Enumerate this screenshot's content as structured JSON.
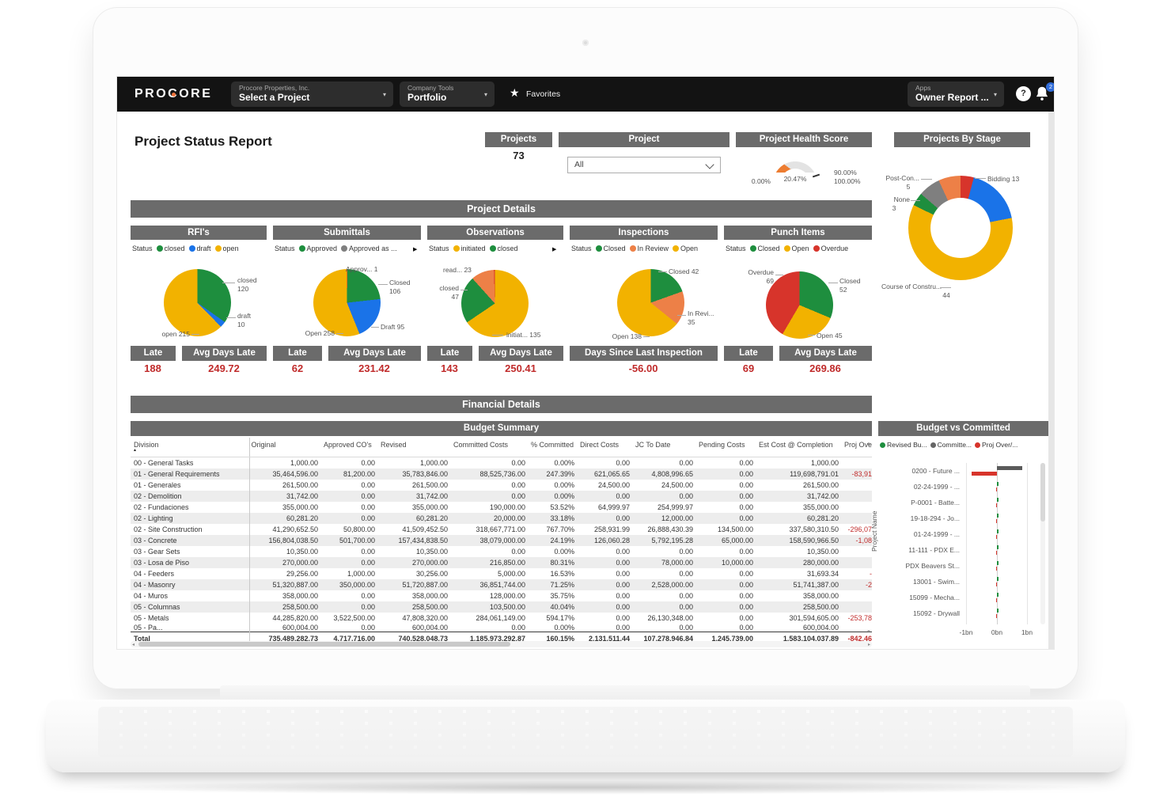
{
  "nav": {
    "logo": "PROCORE",
    "project_dd_label": "Procore Properties, Inc.",
    "project_dd_value": "Select a Project",
    "tools_dd_label": "Company Tools",
    "tools_dd_value": "Portfolio",
    "favorites": "Favorites",
    "apps_dd_label": "Apps",
    "apps_dd_value": "Owner Report ...",
    "notification_count": "2"
  },
  "report": {
    "title": "Project Status Report"
  },
  "projects_card": {
    "header": "Projects",
    "count": "73"
  },
  "project_filter": {
    "header": "Project",
    "value": "All"
  },
  "health": {
    "header": "Project Health Score",
    "min_label": "0.00%",
    "value_label": "20.47%",
    "target_label": "90.00%",
    "max_label": "100.00%",
    "percent": 20.47,
    "target_percent": 90,
    "arc_color": "#ED7D31"
  },
  "stage": {
    "header": "Projects By Stage",
    "slices": [
      {
        "label": "",
        "value": 3,
        "color": "#D7342B"
      },
      {
        "label": "Bidding",
        "value": 13,
        "color": "#1A73E8"
      },
      {
        "label": "Course of Constru...",
        "value": 44,
        "color": "#F2B200"
      },
      {
        "label": "None",
        "value": 3,
        "color": "#1E8E3E"
      },
      {
        "label": "Post-Con...",
        "value": 5,
        "color": "#7F7F7F"
      },
      {
        "label": "",
        "value": 5,
        "color": "#ED8047"
      }
    ],
    "callouts": {
      "post": "Post-Con...",
      "post_v": "5",
      "none": "None",
      "none_v": "3",
      "bidding": "Bidding 13",
      "course": "Course of Constru...",
      "course_v": "44"
    }
  },
  "details": {
    "header": "Project Details",
    "sections": [
      {
        "title": "RFI's",
        "legend_label": "Status",
        "legend": [
          {
            "label": "closed",
            "color": "#1E8E3E"
          },
          {
            "label": "draft",
            "color": "#1A73E8"
          },
          {
            "label": "open",
            "color": "#F2B200"
          }
        ],
        "slices": [
          {
            "label": "closed",
            "value": 120,
            "color": "#1E8E3E"
          },
          {
            "label": "draft",
            "value": 10,
            "color": "#1A73E8"
          },
          {
            "label": "open",
            "value": 215,
            "color": "#F2B200"
          }
        ],
        "callouts": [
          "closed",
          "120",
          "draft",
          "10",
          "open 215"
        ],
        "metrics": [
          {
            "header": "Late",
            "value": "188"
          },
          {
            "header": "Avg Days Late",
            "value": "249.72"
          }
        ]
      },
      {
        "title": "Submittals",
        "legend_label": "Status",
        "legend": [
          {
            "label": "Approved",
            "color": "#1E8E3E"
          },
          {
            "label": "Approved as ...",
            "color": "#7F7F7F"
          }
        ],
        "slices": [
          {
            "label": "Approv...",
            "value": 1,
            "color": "#D7342B"
          },
          {
            "label": "Closed",
            "value": 106,
            "color": "#1E8E3E"
          },
          {
            "label": "Draft",
            "value": 95,
            "color": "#1A73E8"
          },
          {
            "label": "Open",
            "value": 258,
            "color": "#F2B200"
          }
        ],
        "callouts": [
          "Approv... 1",
          "Closed",
          "106",
          "Draft 95",
          "Open 258"
        ],
        "metrics": [
          {
            "header": "Late",
            "value": "62"
          },
          {
            "header": "Avg Days Late",
            "value": "231.42"
          }
        ]
      },
      {
        "title": "Observations",
        "legend_label": "Status",
        "legend": [
          {
            "label": "initiated",
            "color": "#F2B200"
          },
          {
            "label": "closed",
            "color": "#1E8E3E"
          }
        ],
        "slices": [
          {
            "label": "initiat...",
            "value": 135,
            "color": "#F2B200"
          },
          {
            "label": "closed",
            "value": 47,
            "color": "#1E8E3E"
          },
          {
            "label": "read...",
            "value": 23,
            "color": "#ED8047"
          },
          {
            "label": "",
            "value": 1,
            "color": "#D7342B"
          }
        ],
        "callouts": [
          "read... 23",
          "closed",
          "47",
          "initiat... 135"
        ],
        "metrics": [
          {
            "header": "Late",
            "value": "143"
          },
          {
            "header": "Avg Days Late",
            "value": "250.41"
          }
        ]
      },
      {
        "title": "Inspections",
        "legend_label": "Status",
        "legend": [
          {
            "label": "Closed",
            "color": "#1E8E3E"
          },
          {
            "label": "In Review",
            "color": "#ED8047"
          },
          {
            "label": "Open",
            "color": "#F2B200"
          }
        ],
        "slices": [
          {
            "label": "Closed",
            "value": 42,
            "color": "#1E8E3E"
          },
          {
            "label": "In Revi...",
            "value": 35,
            "color": "#ED8047"
          },
          {
            "label": "Open",
            "value": 138,
            "color": "#F2B200"
          }
        ],
        "callouts": [
          "Closed 42",
          "In Revi...",
          "35",
          "Open 138"
        ],
        "metrics": [
          {
            "header": "Days Since Last Inspection",
            "value": "-56.00"
          }
        ]
      },
      {
        "title": "Punch Items",
        "legend_label": "Status",
        "legend": [
          {
            "label": "Closed",
            "color": "#1E8E3E"
          },
          {
            "label": "Open",
            "color": "#F2B200"
          },
          {
            "label": "Overdue",
            "color": "#D7342B"
          }
        ],
        "slices": [
          {
            "label": "Closed",
            "value": 52,
            "color": "#1E8E3E"
          },
          {
            "label": "Open",
            "value": 45,
            "color": "#F2B200"
          },
          {
            "label": "Overdue",
            "value": 69,
            "color": "#D7342B"
          }
        ],
        "callouts": [
          "Overdue",
          "69",
          "Closed",
          "52",
          "Open 45"
        ],
        "metrics": [
          {
            "header": "Late",
            "value": "69"
          },
          {
            "header": "Avg Days Late",
            "value": "269.86"
          }
        ]
      }
    ]
  },
  "financial": {
    "header": "Financial Details",
    "summary_header": "Budget Summary",
    "columns": [
      "Division",
      "Original",
      "Approved CO's",
      "Revised",
      "Committed Costs",
      "% Committed",
      "Direct Costs",
      "JC To Date",
      "Pending Costs",
      "Est Cost @ Completion",
      "Proj Ove"
    ],
    "rows": [
      [
        "00 - General Tasks",
        "1,000.00",
        "0.00",
        "1,000.00",
        "0.00",
        "0.00%",
        "0.00",
        "0.00",
        "0.00",
        "1,000.00",
        ""
      ],
      [
        "01 - General Requirements",
        "35,464,596.00",
        "81,200.00",
        "35,783,846.00",
        "88,525,736.00",
        "247.39%",
        "621,065.65",
        "4,808,996.65",
        "0.00",
        "119,698,791.01",
        "-83,91"
      ],
      [
        "01 - Generales",
        "261,500.00",
        "0.00",
        "261,500.00",
        "0.00",
        "0.00%",
        "24,500.00",
        "24,500.00",
        "0.00",
        "261,500.00",
        ""
      ],
      [
        "02 - Demolition",
        "31,742.00",
        "0.00",
        "31,742.00",
        "0.00",
        "0.00%",
        "0.00",
        "0.00",
        "0.00",
        "31,742.00",
        ""
      ],
      [
        "02 - Fundaciones",
        "355,000.00",
        "0.00",
        "355,000.00",
        "190,000.00",
        "53.52%",
        "64,999.97",
        "254,999.97",
        "0.00",
        "355,000.00",
        ""
      ],
      [
        "02 - Lighting",
        "60,281.20",
        "0.00",
        "60,281.20",
        "20,000.00",
        "33.18%",
        "0.00",
        "12,000.00",
        "0.00",
        "60,281.20",
        ""
      ],
      [
        "02 - Site Construction",
        "41,290,652.50",
        "50,800.00",
        "41,509,452.50",
        "318,667,771.00",
        "767.70%",
        "258,931.99",
        "26,888,430.39",
        "134,500.00",
        "337,580,310.50",
        "-296,07"
      ],
      [
        "03 - Concrete",
        "156,804,038.50",
        "501,700.00",
        "157,434,838.50",
        "38,079,000.00",
        "24.19%",
        "126,060.28",
        "5,792,195.28",
        "65,000.00",
        "158,590,966.50",
        "-1,08"
      ],
      [
        "03 - Gear Sets",
        "10,350.00",
        "0.00",
        "10,350.00",
        "0.00",
        "0.00%",
        "0.00",
        "0.00",
        "0.00",
        "10,350.00",
        ""
      ],
      [
        "03 - Losa de Piso",
        "270,000.00",
        "0.00",
        "270,000.00",
        "216,850.00",
        "80.31%",
        "0.00",
        "78,000.00",
        "10,000.00",
        "280,000.00",
        ""
      ],
      [
        "04 - Feeders",
        "29,256.00",
        "1,000.00",
        "30,256.00",
        "5,000.00",
        "16.53%",
        "0.00",
        "0.00",
        "0.00",
        "31,693.34",
        "-"
      ],
      [
        "04 - Masonry",
        "51,320,887.00",
        "350,000.00",
        "51,720,887.00",
        "36,851,744.00",
        "71.25%",
        "0.00",
        "2,528,000.00",
        "0.00",
        "51,741,387.00",
        "-2"
      ],
      [
        "04 - Muros",
        "358,000.00",
        "0.00",
        "358,000.00",
        "128,000.00",
        "35.75%",
        "0.00",
        "0.00",
        "0.00",
        "358,000.00",
        ""
      ],
      [
        "05 - Columnas",
        "258,500.00",
        "0.00",
        "258,500.00",
        "103,500.00",
        "40.04%",
        "0.00",
        "0.00",
        "0.00",
        "258,500.00",
        ""
      ],
      [
        "05 - Metals",
        "44,285,820.00",
        "3,522,500.00",
        "47,808,320.00",
        "284,061,149.00",
        "594.17%",
        "0.00",
        "26,130,348.00",
        "0.00",
        "301,594,605.00",
        "-253,78"
      ]
    ],
    "partial_row": [
      "05 - Pa...",
      "600,004.00",
      "0.00",
      "600,004.00",
      "0.00",
      "0.00%",
      "0.00",
      "0.00",
      "0.00",
      "600,004.00",
      ""
    ],
    "total_row": [
      "Total",
      "735,489,282.73",
      "4,717,716.00",
      "740,528,048.73",
      "1,185,973,292.87",
      "160.15%",
      "2,131,511.44",
      "107,278,946.84",
      "1,245,739.00",
      "1,583,104,037.89",
      "-842,46"
    ]
  },
  "bvc": {
    "header": "Budget vs Committed",
    "legend": [
      {
        "label": "Revised Bu...",
        "color": "#1E8E3E"
      },
      {
        "label": "Committe...",
        "color": "#666666"
      },
      {
        "label": "Proj Over/...",
        "color": "#D7342B"
      }
    ],
    "y_label": "Project Name",
    "x_ticks": [
      "-1bn",
      "0bn",
      "1bn"
    ],
    "rows": [
      {
        "label": "0200 - Future ...",
        "committed": 0.85,
        "revised": 0.02,
        "proj_over": -0.85
      },
      {
        "label": "02-24-1999 - ...",
        "committed": 0,
        "revised": 0.02,
        "proj_over": -0.02
      },
      {
        "label": "P-0001 - Batte...",
        "committed": 0,
        "revised": 0.02,
        "proj_over": -0.02
      },
      {
        "label": "19-18-294 - Jo...",
        "committed": 0,
        "revised": 0.02,
        "proj_over": -0.02
      },
      {
        "label": "01-24-1999 - ...",
        "committed": 0,
        "revised": 0.02,
        "proj_over": -0.02
      },
      {
        "label": "11-111 - PDX E...",
        "committed": 0,
        "revised": 0.02,
        "proj_over": -0.02
      },
      {
        "label": "PDX Beavers St...",
        "committed": 0,
        "revised": 0.02,
        "proj_over": -0.02
      },
      {
        "label": "13001 - Swim...",
        "committed": 0,
        "revised": 0.03,
        "proj_over": -0.02
      },
      {
        "label": "15099 - Mecha...",
        "committed": 0,
        "revised": 0.03,
        "proj_over": -0.02
      },
      {
        "label": "15092 - Drywall",
        "committed": 0,
        "revised": 0.02,
        "proj_over": -0.03
      }
    ]
  }
}
